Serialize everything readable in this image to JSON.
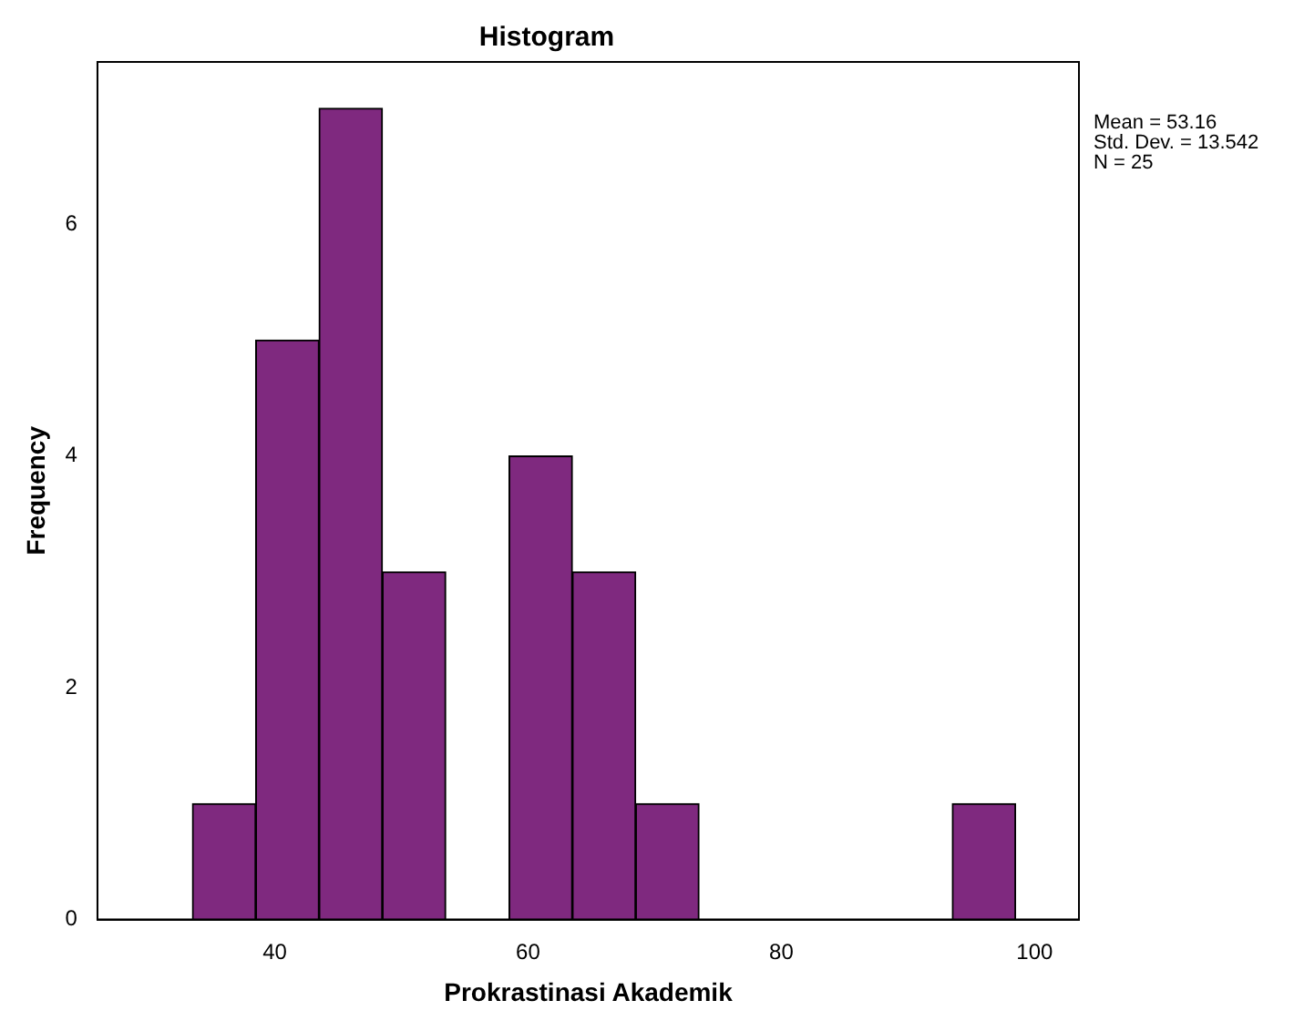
{
  "chart_data": {
    "type": "histogram",
    "title": "Histogram",
    "xlabel": "Prokrastinasi Akademik",
    "ylabel": "Frequency",
    "bins": [
      33.5,
      38.5,
      43.5,
      48.5,
      53.5,
      58.5,
      63.5,
      68.5,
      73.5,
      78.5,
      83.5,
      88.5,
      93.5,
      98.5
    ],
    "values": [
      1,
      5,
      7,
      3,
      0,
      4,
      3,
      1,
      0,
      0,
      0,
      0,
      1
    ],
    "color": "#7f297f",
    "xlim": [
      26,
      103.5
    ],
    "xticks": [
      40,
      60,
      80,
      100
    ],
    "ylim": [
      0,
      7.4
    ],
    "yticks": [
      0,
      2,
      4,
      6
    ],
    "grid": false,
    "legend": false,
    "annotations": [
      "Mean = 53.16",
      "Std. Dev. = 13.542",
      "N = 25"
    ]
  }
}
